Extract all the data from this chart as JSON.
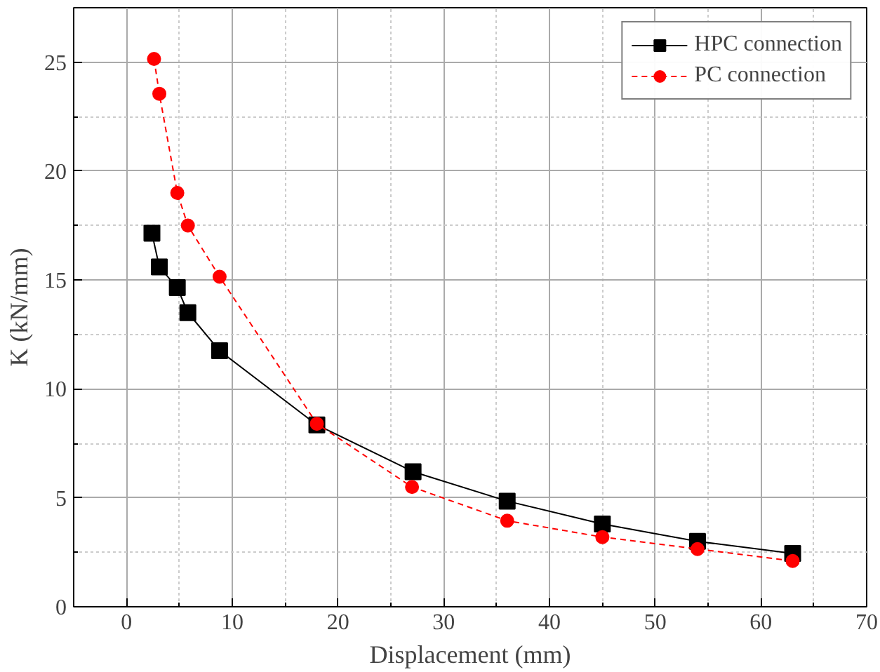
{
  "chart_data": {
    "type": "line",
    "xlabel": "Displacement (mm)",
    "ylabel": "K (kN/mm)",
    "xlim": [
      -5,
      70
    ],
    "xticks": [
      0,
      10,
      20,
      30,
      40,
      50,
      60,
      70
    ],
    "ylim": [
      0,
      27.5
    ],
    "yticks": [
      0,
      5,
      10,
      15,
      20,
      25
    ],
    "grid": true,
    "legend": "top right",
    "series": [
      {
        "name": "HPC connection",
        "color": "#000000",
        "marker": "square",
        "line_style": "solid",
        "x": [
          2.4,
          3.1,
          4.8,
          5.8,
          8.8,
          18,
          27.1,
          36,
          45,
          54,
          63
        ],
        "values": [
          17.15,
          15.6,
          14.65,
          13.5,
          11.75,
          8.35,
          6.2,
          4.85,
          3.8,
          3.0,
          2.45
        ]
      },
      {
        "name": "PC connection",
        "color": "#ff0000",
        "marker": "circle",
        "line_style": "dashed",
        "x": [
          2.6,
          3.1,
          4.8,
          5.8,
          8.8,
          18,
          27,
          36,
          45,
          54,
          63
        ],
        "values": [
          25.15,
          23.55,
          19.0,
          17.5,
          15.15,
          8.4,
          5.5,
          3.95,
          3.2,
          2.65,
          2.1
        ]
      }
    ]
  }
}
